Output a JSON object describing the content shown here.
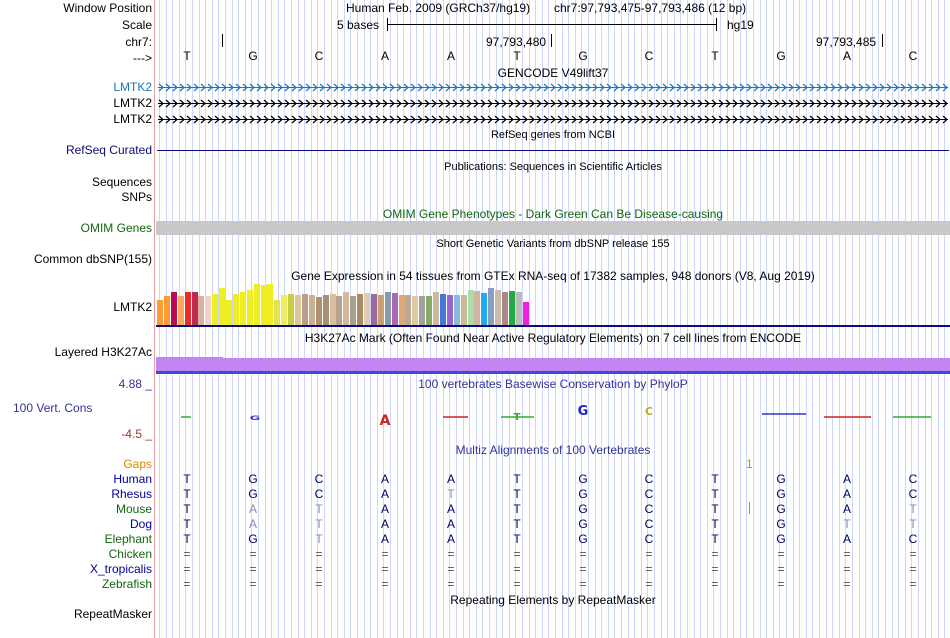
{
  "ruler": {
    "labels": [
      "Window Position",
      "Scale",
      "chr7:",
      "--->"
    ],
    "assembly": "Human Feb. 2009 (GRCh37/hg19)",
    "position": "chr7:97,793,475-97,793,486 (12 bp)",
    "scale_text": "5 bases",
    "scale_db": "hg19",
    "coord1": "97,793,480",
    "coord2": "97,793,485"
  },
  "bases": [
    "T",
    "G",
    "C",
    "A",
    "A",
    "T",
    "G",
    "C",
    "T",
    "G",
    "A",
    "C"
  ],
  "gencode": {
    "title": "GENCODE V49lift37",
    "genes": [
      "LMTK2",
      "LMTK2",
      "LMTK2"
    ],
    "colors": [
      "#1f74b4",
      "#000000",
      "#000000"
    ]
  },
  "refseq": {
    "title": "RefSeq genes from NCBI",
    "label": "RefSeq Curated",
    "color": "#0c0c78"
  },
  "pubs": {
    "title": "Publications: Sequences in Scientific Articles",
    "labels": [
      "Sequences",
      "SNPs"
    ]
  },
  "omim": {
    "title": "OMIM Gene Phenotypes - Dark Green Can Be Disease-causing",
    "label": "OMIM Genes",
    "title_color": "#116611",
    "bar_color": "#c8c8c8"
  },
  "dbsnp": {
    "title": "Short Genetic Variants from dbSNP release 155",
    "label": "Common dbSNP(155)"
  },
  "gtex": {
    "title": "Gene Expression in 54 tissues from GTEx RNA-seq of 17382 samples, 948 donors (V8, Aug 2019)",
    "label": "LMTK2",
    "values": [
      0.6,
      0.7,
      0.8,
      0.7,
      0.8,
      0.8,
      0.7,
      0.7,
      0.75,
      0.9,
      0.6,
      0.75,
      0.8,
      0.85,
      1.0,
      0.98,
      1.0,
      0.6,
      0.72,
      0.76,
      0.72,
      0.75,
      0.72,
      0.68,
      0.72,
      0.75,
      0.7,
      0.8,
      0.7,
      0.75,
      0.78,
      0.76,
      0.72,
      0.8,
      0.78,
      0.74,
      0.72,
      0.7,
      0.7,
      0.7,
      0.8,
      0.76,
      0.72,
      0.74,
      0.72,
      0.85,
      0.82,
      0.78,
      0.9,
      0.86,
      0.8,
      0.82,
      0.8,
      0.55
    ],
    "colors": [
      "#ff9b36",
      "#ff9b36",
      "#bb0b54",
      "#ffa65e",
      "#ee2a2a",
      "#bb2c50",
      "#d8b29c",
      "#f2d2c8",
      "#eeee22",
      "#eeee22",
      "#eeee22",
      "#eeee22",
      "#eeee22",
      "#eeee22",
      "#eeee22",
      "#eeee22",
      "#eeee22",
      "#e3e34f",
      "#eeee66",
      "#cccc44",
      "#e0c49a",
      "#b8a088",
      "#c8b090",
      "#b09070",
      "#a69078",
      "#d6c0a0",
      "#b4a38f",
      "#d4b89f",
      "#a6a090",
      "#aa8a66",
      "#e0ccb0",
      "#9a6aa0",
      "#c8a070",
      "#8899aa",
      "#aa66bb",
      "#ddaa77",
      "#bbaa99",
      "#e0c8a0",
      "#a0a0a0",
      "#88aa66",
      "#ccbb99",
      "#4477dd",
      "#9966cc",
      "#88bbdd",
      "#c8bb99",
      "#aaddaa",
      "#d2b4a0",
      "#22aaee",
      "#88a0c0",
      "#ccbbaa",
      "#aa8888",
      "#22aa44",
      "#bbbbbb",
      "#ee22dd"
    ]
  },
  "h3k27": {
    "title": "H3K27Ac Mark (Often Found Near Active Regulatory Elements) on 7 cell lines from ENCODE",
    "label": "Layered H3K27Ac",
    "color": "#c285f4"
  },
  "phylop": {
    "title": "100 vertebrates Basewise Conservation by PhyloP",
    "label": "100 Vert. Cons",
    "max": "4.88 _",
    "min": "-4.5 _",
    "color": "#333399"
  },
  "multiz": {
    "title": "Multiz Alignments of 100 Vertebrates",
    "gaps_label": "Gaps",
    "gaps_value": "1",
    "species": [
      {
        "name": "Human",
        "color": "#000099",
        "seq": [
          "T",
          "G",
          "C",
          "A",
          "A",
          "T",
          "G",
          "C",
          "T",
          "G",
          "A",
          "C"
        ]
      },
      {
        "name": "Rhesus",
        "color": "#000099",
        "seq": [
          "T",
          "G",
          "C",
          "A",
          "T",
          "T",
          "G",
          "C",
          "T",
          "G",
          "A",
          "C"
        ]
      },
      {
        "name": "Mouse",
        "color": "#116611",
        "seq": [
          "T",
          "A",
          "T",
          "A",
          "A",
          "T",
          "G",
          "C",
          "T",
          "G",
          "A",
          "T"
        ]
      },
      {
        "name": "Dog",
        "color": "#000099",
        "seq": [
          "T",
          "A",
          "T",
          "A",
          "A",
          "T",
          "G",
          "C",
          "T",
          "G",
          "T",
          "T"
        ]
      },
      {
        "name": "Elephant",
        "color": "#116611",
        "seq": [
          "T",
          "G",
          "T",
          "A",
          "A",
          "T",
          "G",
          "C",
          "T",
          "G",
          "A",
          "C"
        ]
      },
      {
        "name": "Chicken",
        "color": "#116611",
        "seq": [
          "=",
          "=",
          "=",
          "=",
          "=",
          "=",
          "=",
          "=",
          "=",
          "=",
          "=",
          "="
        ]
      },
      {
        "name": "X_tropicalis",
        "color": "#000099",
        "seq": [
          "=",
          "=",
          "=",
          "=",
          "=",
          "=",
          "=",
          "=",
          "=",
          "=",
          "=",
          "="
        ]
      },
      {
        "name": "Zebrafish",
        "color": "#116611",
        "seq": [
          "=",
          "=",
          "=",
          "=",
          "=",
          "=",
          "=",
          "=",
          "=",
          "=",
          "=",
          "="
        ]
      }
    ]
  },
  "repeat": {
    "title": "Repeating Elements by RepeatMasker",
    "label": "RepeatMasker"
  }
}
